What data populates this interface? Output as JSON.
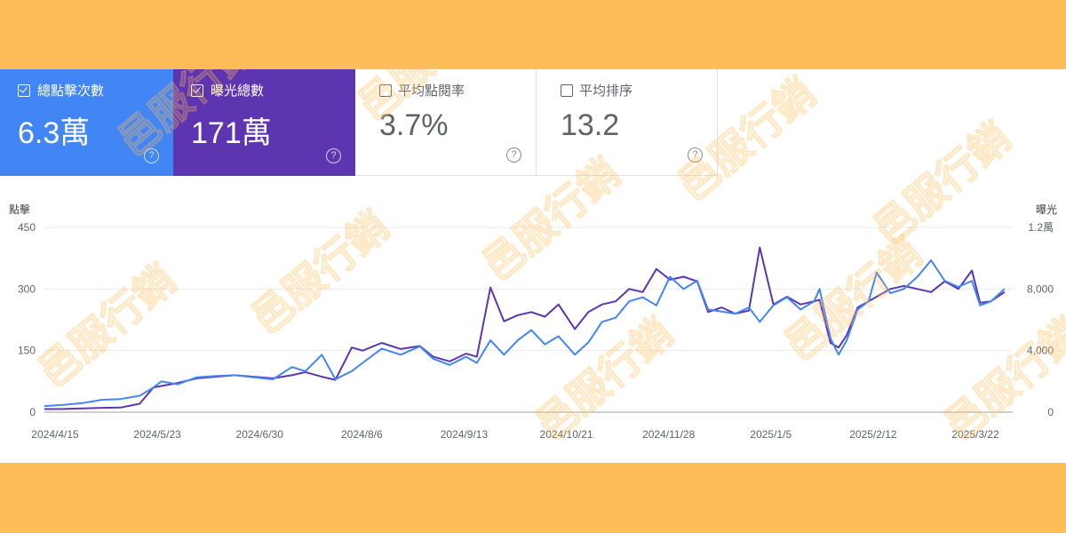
{
  "cards": {
    "clicks": {
      "label": "總點擊次數",
      "value": "6.3萬",
      "checked": true,
      "color": "#4285f4"
    },
    "impressions": {
      "label": "曝光總數",
      "value": "171萬",
      "checked": true,
      "color": "#5e35b1"
    },
    "ctr": {
      "label": "平均點閱率",
      "value": "3.7%",
      "checked": false
    },
    "position": {
      "label": "平均排序",
      "value": "13.2",
      "checked": false
    },
    "help_glyph": "?"
  },
  "watermark": "邑服行銷",
  "colors": {
    "background": "#ffbd59",
    "clicks": "#4285f4",
    "impressions": "#5e35b1"
  },
  "chart_data": {
    "type": "line",
    "y_left_title": "點擊",
    "y_right_title": "曝光",
    "y_left_ticks": [
      "0",
      "150",
      "300",
      "450"
    ],
    "y_left_range": [
      0,
      450
    ],
    "y_right_ticks": [
      "0",
      "4,000",
      "8,000",
      "1.2萬"
    ],
    "y_right_range": [
      0,
      12000
    ],
    "x_ticks": [
      "2024/4/15",
      "2024/5/23",
      "2024/6/30",
      "2024/8/6",
      "2024/9/13",
      "2024/10/21",
      "2024/11/28",
      "2025/1/5",
      "2025/2/12",
      "2025/3/22"
    ],
    "x_range": [
      "2024-04-15",
      "2025-04-06"
    ],
    "grid": true,
    "series": [
      {
        "key": "clicks",
        "axis": "left",
        "color": "#4285f4",
        "points": [
          [
            "2024-04-15",
            15
          ],
          [
            "2024-04-22",
            18
          ],
          [
            "2024-04-29",
            22
          ],
          [
            "2024-05-06",
            30
          ],
          [
            "2024-05-13",
            32
          ],
          [
            "2024-05-20",
            40
          ],
          [
            "2024-05-25",
            60
          ],
          [
            "2024-05-28",
            75
          ],
          [
            "2024-06-03",
            68
          ],
          [
            "2024-06-10",
            85
          ],
          [
            "2024-06-17",
            88
          ],
          [
            "2024-06-24",
            90
          ],
          [
            "2024-07-01",
            85
          ],
          [
            "2024-07-08",
            80
          ],
          [
            "2024-07-15",
            110
          ],
          [
            "2024-07-20",
            100
          ],
          [
            "2024-07-26",
            140
          ],
          [
            "2024-07-31",
            80
          ],
          [
            "2024-08-06",
            100
          ],
          [
            "2024-08-10",
            120
          ],
          [
            "2024-08-17",
            155
          ],
          [
            "2024-08-24",
            140
          ],
          [
            "2024-08-31",
            160
          ],
          [
            "2024-09-05",
            130
          ],
          [
            "2024-09-11",
            115
          ],
          [
            "2024-09-17",
            135
          ],
          [
            "2024-09-21",
            120
          ],
          [
            "2024-09-26",
            175
          ],
          [
            "2024-10-01",
            140
          ],
          [
            "2024-10-06",
            175
          ],
          [
            "2024-10-11",
            200
          ],
          [
            "2024-10-16",
            165
          ],
          [
            "2024-10-21",
            185
          ],
          [
            "2024-10-27",
            140
          ],
          [
            "2024-11-01",
            170
          ],
          [
            "2024-11-06",
            220
          ],
          [
            "2024-11-11",
            230
          ],
          [
            "2024-11-16",
            270
          ],
          [
            "2024-11-21",
            280
          ],
          [
            "2024-11-26",
            260
          ],
          [
            "2024-12-01",
            330
          ],
          [
            "2024-12-06",
            300
          ],
          [
            "2024-12-11",
            320
          ],
          [
            "2024-12-15",
            250
          ],
          [
            "2024-12-20",
            245
          ],
          [
            "2024-12-25",
            240
          ],
          [
            "2024-12-30",
            255
          ],
          [
            "2025-01-03",
            220
          ],
          [
            "2025-01-08",
            260
          ],
          [
            "2025-01-13",
            280
          ],
          [
            "2025-01-18",
            250
          ],
          [
            "2025-01-23",
            270
          ],
          [
            "2025-01-25",
            300
          ],
          [
            "2025-01-29",
            180
          ],
          [
            "2025-02-01",
            140
          ],
          [
            "2025-02-04",
            175
          ],
          [
            "2025-02-08",
            250
          ],
          [
            "2025-02-12",
            270
          ],
          [
            "2025-02-15",
            340
          ],
          [
            "2025-02-20",
            290
          ],
          [
            "2025-02-25",
            300
          ],
          [
            "2025-03-02",
            330
          ],
          [
            "2025-03-07",
            370
          ],
          [
            "2025-03-12",
            320
          ],
          [
            "2025-03-17",
            305
          ],
          [
            "2025-03-22",
            320
          ],
          [
            "2025-03-25",
            260
          ],
          [
            "2025-03-29",
            270
          ],
          [
            "2025-04-03",
            300
          ]
        ]
      },
      {
        "key": "impressions",
        "axis": "right",
        "color": "#5e35b1",
        "points": [
          [
            "2024-04-15",
            200
          ],
          [
            "2024-04-22",
            210
          ],
          [
            "2024-04-29",
            250
          ],
          [
            "2024-05-06",
            280
          ],
          [
            "2024-05-13",
            300
          ],
          [
            "2024-05-20",
            550
          ],
          [
            "2024-05-25",
            1600
          ],
          [
            "2024-05-28",
            1700
          ],
          [
            "2024-06-03",
            1900
          ],
          [
            "2024-06-10",
            2200
          ],
          [
            "2024-06-17",
            2300
          ],
          [
            "2024-06-24",
            2400
          ],
          [
            "2024-07-01",
            2300
          ],
          [
            "2024-07-08",
            2200
          ],
          [
            "2024-07-15",
            2400
          ],
          [
            "2024-07-20",
            2600
          ],
          [
            "2024-07-26",
            2300
          ],
          [
            "2024-07-31",
            2100
          ],
          [
            "2024-08-06",
            4200
          ],
          [
            "2024-08-10",
            4000
          ],
          [
            "2024-08-17",
            4500
          ],
          [
            "2024-08-24",
            4100
          ],
          [
            "2024-08-31",
            4300
          ],
          [
            "2024-09-05",
            3600
          ],
          [
            "2024-09-11",
            3300
          ],
          [
            "2024-09-17",
            3800
          ],
          [
            "2024-09-21",
            3600
          ],
          [
            "2024-09-26",
            8100
          ],
          [
            "2024-10-01",
            5900
          ],
          [
            "2024-10-06",
            6300
          ],
          [
            "2024-10-11",
            6500
          ],
          [
            "2024-10-16",
            6200
          ],
          [
            "2024-10-21",
            7000
          ],
          [
            "2024-10-27",
            5400
          ],
          [
            "2024-11-01",
            6500
          ],
          [
            "2024-11-06",
            7000
          ],
          [
            "2024-11-11",
            7200
          ],
          [
            "2024-11-16",
            8000
          ],
          [
            "2024-11-21",
            7800
          ],
          [
            "2024-11-26",
            9300
          ],
          [
            "2024-12-01",
            8600
          ],
          [
            "2024-12-06",
            8800
          ],
          [
            "2024-12-11",
            8500
          ],
          [
            "2024-12-15",
            6500
          ],
          [
            "2024-12-20",
            6800
          ],
          [
            "2024-12-25",
            6400
          ],
          [
            "2024-12-30",
            6600
          ],
          [
            "2025-01-03",
            10700
          ],
          [
            "2025-01-08",
            7000
          ],
          [
            "2025-01-13",
            7500
          ],
          [
            "2025-01-18",
            7000
          ],
          [
            "2025-01-23",
            7200
          ],
          [
            "2025-01-25",
            7300
          ],
          [
            "2025-01-29",
            4500
          ],
          [
            "2025-02-01",
            4200
          ],
          [
            "2025-02-04",
            5000
          ],
          [
            "2025-02-08",
            6800
          ],
          [
            "2025-02-12",
            7200
          ],
          [
            "2025-02-15",
            7500
          ],
          [
            "2025-02-20",
            8000
          ],
          [
            "2025-02-25",
            8200
          ],
          [
            "2025-03-02",
            8000
          ],
          [
            "2025-03-07",
            7800
          ],
          [
            "2025-03-12",
            8500
          ],
          [
            "2025-03-17",
            8000
          ],
          [
            "2025-03-22",
            9200
          ],
          [
            "2025-03-25",
            7100
          ],
          [
            "2025-03-29",
            7200
          ],
          [
            "2025-04-03",
            7800
          ]
        ]
      }
    ]
  }
}
